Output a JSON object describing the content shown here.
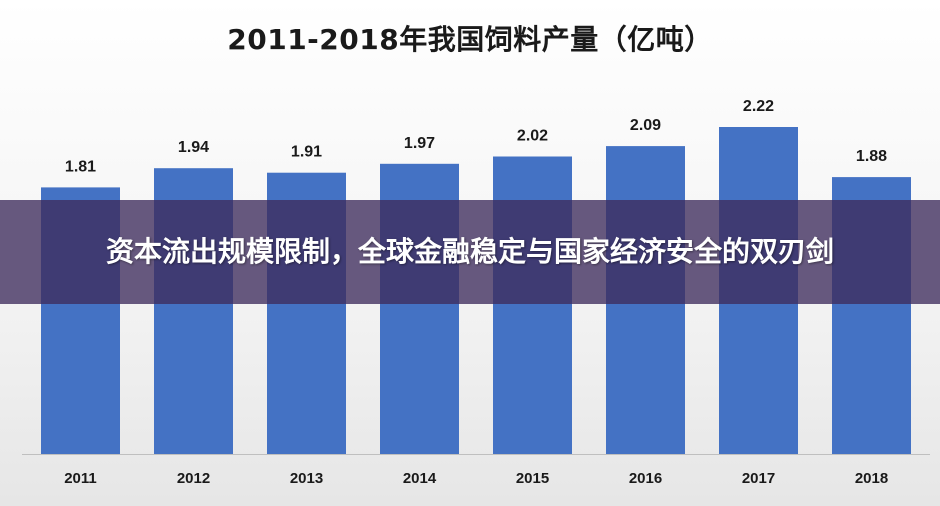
{
  "chart_data": {
    "type": "bar",
    "title": "2011-2018年我国饲料产量（亿吨）",
    "xlabel": "",
    "ylabel": "",
    "categories": [
      "2011",
      "2012",
      "2013",
      "2014",
      "2015",
      "2016",
      "2017",
      "2018"
    ],
    "values": [
      1.81,
      1.94,
      1.91,
      1.97,
      2.02,
      2.09,
      2.22,
      1.88
    ],
    "value_labels": [
      "1.81",
      "1.94",
      "1.91",
      "1.97",
      "2.02",
      "2.09",
      "2.22",
      "1.88"
    ],
    "ylim": [
      0,
      2.3
    ],
    "grid": false,
    "legend": "none",
    "bar_color": "#4472c4"
  },
  "overlay": {
    "text": "资本流出规模限制，全球金融稳定与国家经济安全的双刃剑"
  }
}
